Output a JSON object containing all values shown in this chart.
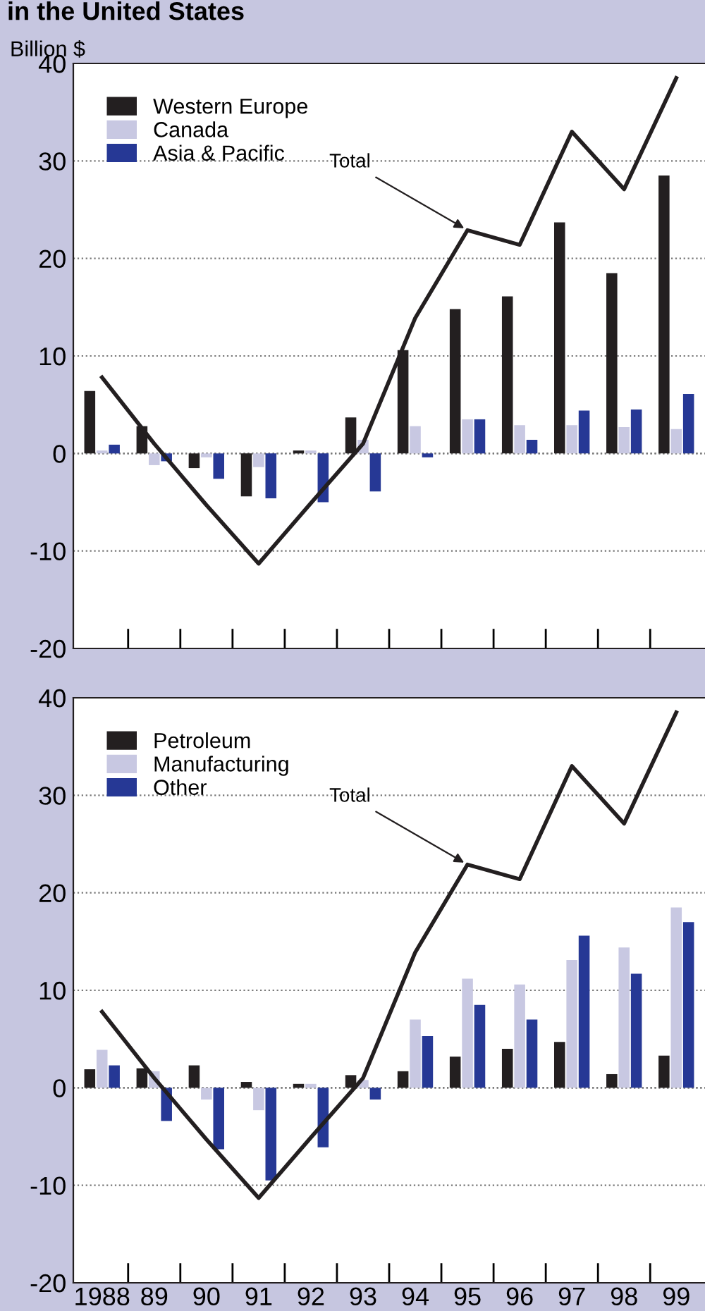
{
  "chart_data": [
    {
      "type": "bar",
      "title": "in the United States",
      "ylabel": "Billion $",
      "categories": [
        "1988",
        "89",
        "90",
        "91",
        "92",
        "93",
        "94",
        "95",
        "96",
        "97",
        "98",
        "99"
      ],
      "series": [
        {
          "name": "Western Europe",
          "color": "#231f20",
          "values": [
            6.4,
            2.8,
            -1.5,
            -4.4,
            0.3,
            3.7,
            10.6,
            14.8,
            16.1,
            23.7,
            18.5,
            28.5
          ]
        },
        {
          "name": "Canada",
          "color": "#c8c8e2",
          "values": [
            0.3,
            -1.2,
            -0.4,
            -1.4,
            0.3,
            1.4,
            2.8,
            3.5,
            2.9,
            2.9,
            2.7,
            2.5
          ]
        },
        {
          "name": "Asia & Pacific",
          "color": "#263895",
          "values": [
            0.9,
            -0.8,
            -2.6,
            -4.6,
            -5.0,
            -3.9,
            -0.4,
            3.5,
            1.4,
            4.4,
            4.5,
            6.1
          ]
        },
        {
          "type": "line",
          "color": "#231f20",
          "values": [
            7.8,
            1.0,
            -5.3,
            -11.3,
            -5.1,
            1.0,
            13.9,
            22.9,
            21.4,
            33.0,
            27.1,
            38.5
          ]
        }
      ],
      "annotations": [
        {
          "text": "Total",
          "x": "95",
          "y": 22.9
        }
      ],
      "ylim": [
        -20,
        40
      ],
      "yticks": [
        -20,
        -10,
        0,
        10,
        20,
        30,
        40
      ],
      "grid": "y",
      "legend": "top left",
      "tick_labels": "y"
    },
    {
      "type": "bar",
      "categories": [
        "1988",
        "89",
        "90",
        "91",
        "92",
        "93",
        "94",
        "95",
        "96",
        "97",
        "98",
        "99"
      ],
      "series": [
        {
          "name": "Petroleum",
          "color": "#231f20",
          "values": [
            1.9,
            2.0,
            2.3,
            0.6,
            0.4,
            1.3,
            1.7,
            3.2,
            4.0,
            4.7,
            1.4,
            3.3
          ]
        },
        {
          "name": "Manufacturing",
          "color": "#c8c8e2",
          "values": [
            3.9,
            1.7,
            -1.2,
            -2.3,
            0.4,
            0.8,
            7.0,
            11.2,
            10.6,
            13.1,
            14.4,
            18.5
          ]
        },
        {
          "name": "Other",
          "color": "#263895",
          "values": [
            2.3,
            -3.4,
            -6.3,
            -9.5,
            -6.1,
            -1.2,
            5.3,
            8.5,
            7.0,
            15.6,
            11.7,
            17.0
          ]
        },
        {
          "type": "line",
          "color": "#231f20",
          "values": [
            7.8,
            1.0,
            -5.3,
            -11.3,
            -5.1,
            1.0,
            13.9,
            22.9,
            21.4,
            33.0,
            27.1,
            38.5
          ]
        }
      ],
      "annotations": [
        {
          "text": "Total",
          "x": "95",
          "y": 22.9
        }
      ],
      "ylim": [
        -20,
        40
      ],
      "yticks": [
        -20,
        -10,
        0,
        10,
        20,
        30,
        40
      ],
      "grid": "y",
      "legend": "top left"
    }
  ]
}
